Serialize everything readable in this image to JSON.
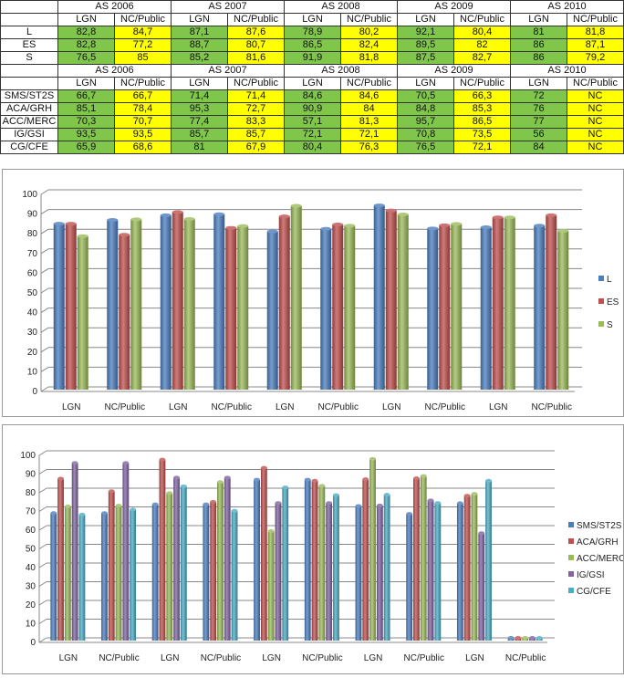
{
  "table": {
    "years": [
      "AS 2006",
      "AS 2007",
      "AS 2008",
      "AS 2009",
      "AS 2010"
    ],
    "subcols": [
      "LGN",
      "NC/Public"
    ],
    "block1": [
      {
        "label": "L",
        "values": [
          "82,8",
          "84,7",
          "87,1",
          "87,6",
          "78,9",
          "80,2",
          "92,1",
          "80,4",
          "81",
          "81,8"
        ]
      },
      {
        "label": "ES",
        "values": [
          "82,8",
          "77,2",
          "88,7",
          "80,7",
          "86,5",
          "82,4",
          "89,5",
          "82",
          "86",
          "87,1"
        ]
      },
      {
        "label": "S",
        "values": [
          "76,5",
          "85",
          "85,2",
          "81,6",
          "91,9",
          "81,8",
          "87,5",
          "82,7",
          "86",
          "79,2"
        ]
      }
    ],
    "block2": [
      {
        "label": "SMS/ST2S",
        "values": [
          "66,7",
          "66,7",
          "71,4",
          "71,4",
          "84,6",
          "84,6",
          "70,5",
          "66,3",
          "72",
          "NC"
        ]
      },
      {
        "label": "ACA/GRH",
        "values": [
          "85,1",
          "78,4",
          "95,3",
          "72,7",
          "90,9",
          "84",
          "84,8",
          "85,3",
          "76",
          "NC"
        ]
      },
      {
        "label": "ACC/MERC",
        "values": [
          "70,3",
          "70,7",
          "77,4",
          "83,3",
          "57,1",
          "81,3",
          "95,7",
          "86,5",
          "77",
          "NC"
        ]
      },
      {
        "label": "IG/GSI",
        "values": [
          "93,5",
          "93,5",
          "85,7",
          "85,7",
          "72,1",
          "72,1",
          "70,8",
          "73,5",
          "56",
          "NC"
        ]
      },
      {
        "label": "CG/CFE",
        "values": [
          "65,9",
          "68,6",
          "81",
          "67,9",
          "80,4",
          "76,3",
          "76,5",
          "72,1",
          "84",
          "NC"
        ]
      }
    ]
  },
  "chart_data": [
    {
      "type": "bar",
      "categories": [
        "LGN",
        "NC/Public",
        "LGN",
        "NC/Public",
        "LGN",
        "NC/Public",
        "LGN",
        "NC/Public",
        "LGN",
        "NC/Public"
      ],
      "ylim": [
        0,
        100
      ],
      "yticks": [
        0,
        10,
        20,
        30,
        40,
        50,
        60,
        70,
        80,
        90,
        100
      ],
      "legend": "right",
      "grid": true,
      "series": [
        {
          "name": "L",
          "color": "#4a7ebf",
          "values": [
            82.8,
            84.7,
            87.1,
            87.6,
            78.9,
            80.2,
            92.1,
            80.4,
            81,
            81.8
          ]
        },
        {
          "name": "ES",
          "color": "#c0504d",
          "values": [
            82.8,
            77.2,
            88.7,
            80.7,
            86.5,
            82.4,
            89.5,
            82,
            86,
            87.1
          ]
        },
        {
          "name": "S",
          "color": "#9bbb59",
          "values": [
            76.5,
            85,
            85.2,
            81.6,
            91.9,
            81.8,
            87.5,
            82.7,
            86,
            79.2
          ]
        }
      ]
    },
    {
      "type": "bar",
      "categories": [
        "LGN",
        "NC/Public",
        "LGN",
        "NC/Public",
        "LGN",
        "NC/Public",
        "LGN",
        "NC/Public",
        "LGN",
        "NC/Public"
      ],
      "ylim": [
        0,
        100
      ],
      "yticks": [
        0,
        10,
        20,
        30,
        40,
        50,
        60,
        70,
        80,
        90,
        100
      ],
      "legend": "right",
      "grid": true,
      "series": [
        {
          "name": "SMS/ST2S",
          "color": "#4a7ebf",
          "values": [
            66.7,
            66.7,
            71.4,
            71.4,
            84.6,
            84.6,
            70.5,
            66.3,
            72,
            0
          ]
        },
        {
          "name": "ACA/GRH",
          "color": "#c0504d",
          "values": [
            85.1,
            78.4,
            95.3,
            72.7,
            90.9,
            84,
            84.8,
            85.3,
            76,
            0
          ]
        },
        {
          "name": "ACC/MERC",
          "color": "#9bbb59",
          "values": [
            70.3,
            70.7,
            77.4,
            83.3,
            57.1,
            81.3,
            95.7,
            86.5,
            77,
            0
          ]
        },
        {
          "name": "IG/GSI",
          "color": "#8064a2",
          "values": [
            93.5,
            93.5,
            85.7,
            85.7,
            72.1,
            72.1,
            70.8,
            73.5,
            56,
            0
          ]
        },
        {
          "name": "CG/CFE",
          "color": "#4bacc6",
          "values": [
            65.9,
            68.6,
            81,
            67.9,
            80.4,
            76.3,
            76.5,
            72.1,
            84,
            0
          ]
        }
      ]
    }
  ]
}
